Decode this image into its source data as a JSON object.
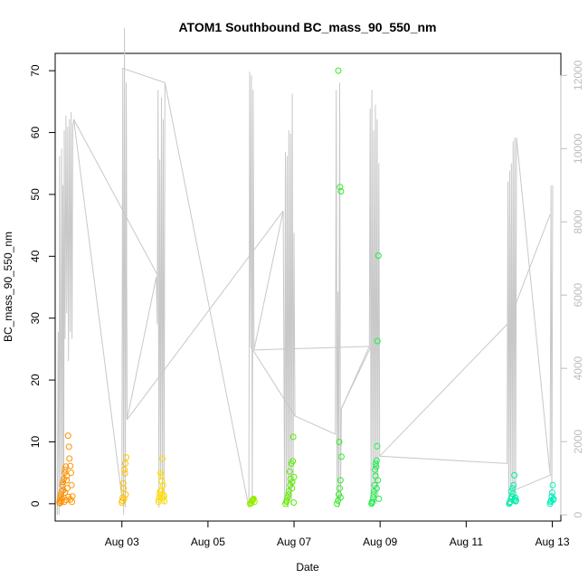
{
  "chart_data": {
    "type": "scatter",
    "title": "ATOM1 Southbound BC_mass_90_550_nm",
    "xlabel": "Date",
    "ylabel": "BC_mass_90_550_nm",
    "x_unit": "days in August",
    "xlim": [
      1.45,
      13.2
    ],
    "ylim": [
      -2.8,
      72.8
    ],
    "x_ticks": [
      {
        "value": 3,
        "label": "Aug 03"
      },
      {
        "value": 5,
        "label": "Aug 05"
      },
      {
        "value": 7,
        "label": "Aug 07"
      },
      {
        "value": 9,
        "label": "Aug 09"
      },
      {
        "value": 11,
        "label": "Aug 11"
      },
      {
        "value": 13,
        "label": "Aug 13"
      }
    ],
    "y_ticks": [
      0,
      10,
      20,
      30,
      40,
      50,
      60,
      70
    ],
    "y2_ticks": [
      0,
      2000,
      4000,
      6000,
      8000,
      10000,
      12000
    ],
    "y2lim": [
      -170,
      12600
    ],
    "y2_color": "#bdbdbd",
    "grid": false,
    "series": [
      {
        "role": "points",
        "marker": "open-circle",
        "color_gradient": [
          "#ff8c00",
          "#ffee00",
          "#44ee00",
          "#00ee88",
          "#00eebb"
        ],
        "x": [
          1.55,
          1.56,
          1.57,
          1.58,
          1.6,
          1.61,
          1.62,
          1.63,
          1.65,
          1.66,
          1.67,
          1.68,
          1.7,
          1.71,
          1.72,
          1.73,
          1.75,
          1.77,
          1.78,
          1.8,
          1.82,
          1.83,
          1.85,
          1.56,
          1.6,
          1.64,
          1.68,
          1.72,
          1.76,
          1.8,
          1.84,
          3.0,
          3.02,
          3.04,
          3.06,
          3.08,
          3.1,
          3.01,
          3.03,
          3.05,
          3.07,
          3.09,
          3.85,
          3.87,
          3.89,
          3.9,
          3.92,
          3.94,
          3.96,
          3.98,
          3.86,
          3.88,
          3.91,
          3.93,
          3.95,
          3.97,
          3.99,
          5.98,
          6.0,
          6.02,
          6.04,
          6.06,
          6.08,
          6.01,
          6.03,
          6.05,
          6.8,
          6.82,
          6.85,
          6.88,
          6.9,
          6.92,
          6.95,
          6.98,
          7.0,
          6.83,
          6.87,
          6.91,
          6.94,
          6.97,
          6.99,
          6.96,
          8.0,
          8.02,
          8.04,
          8.06,
          8.08,
          8.1,
          8.05,
          8.07,
          8.09,
          8.03,
          8.08,
          8.8,
          8.82,
          8.84,
          8.86,
          8.88,
          8.9,
          8.92,
          8.94,
          8.96,
          8.81,
          8.85,
          8.87,
          8.89,
          8.91,
          8.93,
          8.95,
          8.97,
          8.92,
          12.0,
          12.02,
          12.04,
          12.06,
          12.08,
          12.1,
          12.12,
          12.14,
          12.16,
          12.01,
          12.05,
          12.09,
          12.13,
          12.15,
          12.95,
          12.97,
          12.99,
          13.01,
          13.03,
          12.96,
          13.0,
          13.02
        ],
        "y": [
          0.2,
          0.5,
          1.0,
          1.5,
          2.0,
          0.8,
          3.0,
          3.5,
          4.0,
          0.3,
          5.0,
          5.5,
          6.0,
          0.6,
          4.5,
          2.5,
          11.0,
          9.2,
          7.3,
          6.1,
          5.0,
          3.0,
          1.2,
          0.1,
          0.4,
          2.2,
          1.8,
          3.8,
          1.1,
          0.7,
          0.3,
          0.2,
          1.0,
          2.5,
          5.5,
          6.5,
          7.5,
          0.5,
          3.3,
          0.8,
          4.9,
          1.5,
          0.3,
          1.0,
          2.0,
          5.0,
          4.5,
          7.3,
          3.0,
          1.2,
          0.6,
          1.6,
          2.2,
          3.6,
          0.9,
          1.4,
          0.4,
          0.0,
          0.2,
          0.4,
          0.6,
          0.8,
          0.3,
          0.1,
          0.5,
          0.7,
          0.0,
          0.3,
          1.0,
          2.0,
          5.2,
          4.0,
          2.5,
          10.8,
          4.3,
          0.5,
          1.5,
          3.0,
          6.5,
          6.9,
          0.2,
          3.5,
          0.0,
          0.5,
          1.5,
          2.5,
          3.8,
          7.6,
          10.0,
          51.2,
          50.5,
          70.0,
          1.0,
          0.0,
          0.4,
          1.0,
          2.0,
          5.5,
          6.5,
          7.0,
          26.3,
          40.1,
          0.2,
          1.5,
          3.0,
          4.5,
          6.0,
          9.3,
          3.8,
          0.8,
          2.5,
          0.0,
          0.3,
          0.8,
          1.2,
          2.5,
          3.0,
          4.6,
          1.0,
          0.5,
          0.2,
          2.0,
          1.6,
          0.7,
          0.4,
          0.0,
          0.5,
          1.2,
          3.0,
          0.8,
          0.3,
          1.8,
          0.6
        ]
      },
      {
        "role": "line",
        "axis": "right",
        "color": "#c8c8c8",
        "x": [
          1.5,
          1.52,
          1.54,
          1.55,
          1.58,
          1.6,
          1.62,
          1.63,
          1.65,
          1.66,
          1.68,
          1.7,
          1.72,
          1.74,
          1.76,
          1.78,
          1.8,
          1.82,
          1.84,
          1.86,
          1.88,
          3.0,
          3.02,
          3.04,
          3.06,
          3.08,
          3.1,
          3.12,
          3.8,
          3.82,
          3.84,
          3.86,
          3.88,
          3.9,
          3.92,
          3.94,
          3.96,
          3.98,
          4.0,
          5.95,
          5.97,
          5.99,
          6.01,
          6.03,
          6.05,
          6.07,
          6.75,
          6.78,
          6.8,
          6.82,
          6.84,
          6.86,
          6.88,
          6.9,
          6.92,
          6.94,
          6.96,
          6.98,
          7.0,
          7.02,
          7.96,
          7.98,
          8.0,
          8.02,
          8.04,
          8.06,
          8.08,
          8.1,
          8.75,
          8.77,
          8.79,
          8.81,
          8.83,
          8.85,
          8.87,
          8.89,
          8.91,
          8.93,
          8.95,
          8.97,
          8.99,
          11.95,
          11.97,
          11.99,
          12.01,
          12.03,
          12.05,
          12.07,
          12.09,
          12.11,
          12.13,
          12.15,
          12.17,
          12.95,
          12.97,
          12.99,
          13.01
        ],
        "y": [
          0,
          5000,
          0,
          9800,
          300,
          10000,
          400,
          9000,
          500,
          10500,
          4800,
          10900,
          5500,
          10600,
          4200,
          10800,
          5000,
          11000,
          4800,
          10600,
          10800,
          500,
          12200,
          0,
          13300,
          200,
          11800,
          2600,
          6500,
          5200,
          11600,
          200,
          9700,
          1000,
          11400,
          400,
          10800,
          300,
          11800,
          200,
          12100,
          4600,
          12000,
          300,
          11600,
          4500,
          8300,
          300,
          9900,
          500,
          9800,
          200,
          10500,
          400,
          10400,
          300,
          11500,
          800,
          7700,
          2700,
          2200,
          11600,
          300,
          6100,
          200,
          11800,
          400,
          2900,
          4600,
          11100,
          300,
          11600,
          600,
          10500,
          400,
          11200,
          300,
          10800,
          500,
          9600,
          1600,
          1400,
          9100,
          300,
          9400,
          500,
          9600,
          400,
          10200,
          300,
          10300,
          500,
          10300,
          1100,
          9000,
          400,
          9000
        ]
      }
    ],
    "line_segments": [
      {
        "x": [
          1.88,
          3.85
        ],
        "y": [
          10800,
          6500
        ]
      },
      {
        "x": [
          3.1,
          3.12
        ],
        "y": [
          11800,
          2600
        ]
      },
      {
        "x": [
          3.12,
          3.12
        ],
        "y": [
          2600,
          2600
        ]
      },
      {
        "x": [
          3.0,
          4.0
        ],
        "y": [
          12200,
          11800
        ]
      },
      {
        "x": [
          3.12,
          6.75
        ],
        "y": [
          2600,
          8300
        ]
      },
      {
        "x": [
          6.07,
          8.77
        ],
        "y": [
          4500,
          4600
        ]
      },
      {
        "x": [
          5.99,
          7.02
        ],
        "y": [
          4600,
          2700
        ]
      },
      {
        "x": [
          8.1,
          8.79
        ],
        "y": [
          2900,
          4600
        ]
      },
      {
        "x": [
          8.99,
          11.95
        ],
        "y": [
          1600,
          5200
        ]
      },
      {
        "x": [
          11.97,
          12.95
        ],
        "y": [
          5200,
          8200
        ]
      },
      {
        "x": [
          12.17,
          12.99
        ],
        "y": [
          700,
          1100
        ]
      }
    ]
  }
}
